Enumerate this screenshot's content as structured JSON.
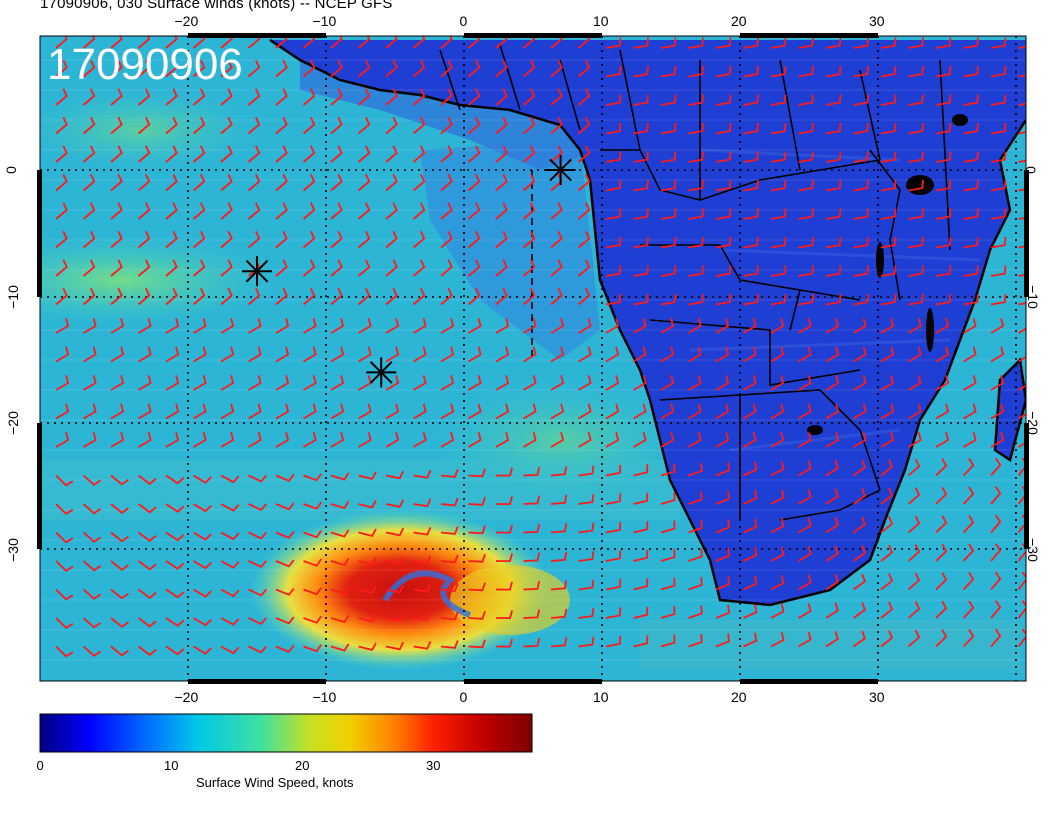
{
  "map": {
    "title": "17090906, 030 Surface winds (knots) -- NCEP GFS",
    "stamp": "17090906",
    "lon_labels_top": [
      "−20",
      "−10",
      "0",
      "10",
      "20",
      "30"
    ],
    "lon_labels_bottom": [
      "−20",
      "−10",
      "0",
      "10",
      "20",
      "30"
    ],
    "lat_labels": [
      "0",
      "−10",
      "−20",
      "−30"
    ],
    "storm_markers": [
      {
        "name": "storm-marker-1",
        "lon": 7,
        "lat": 0
      },
      {
        "name": "storm-marker-2",
        "lon": -15,
        "lat": -8
      },
      {
        "name": "storm-marker-3",
        "lon": -6,
        "lat": -16
      }
    ],
    "colors": {
      "ocean_base": "#2fb8d8",
      "land_base": "#1a3fd0",
      "barb": "#ff1a1a",
      "border": "#000000",
      "stamp_text": "#ffffff"
    }
  },
  "colorbar": {
    "label": "Surface Wind Speed, knots",
    "ticks": [
      "0",
      "10",
      "20",
      "30"
    ],
    "colors": [
      "#00007f",
      "#0000ff",
      "#0080ff",
      "#00d0d0",
      "#40e0a0",
      "#a0e040",
      "#e0e000",
      "#ffa000",
      "#ff4000",
      "#d00000",
      "#7f0000"
    ]
  }
}
